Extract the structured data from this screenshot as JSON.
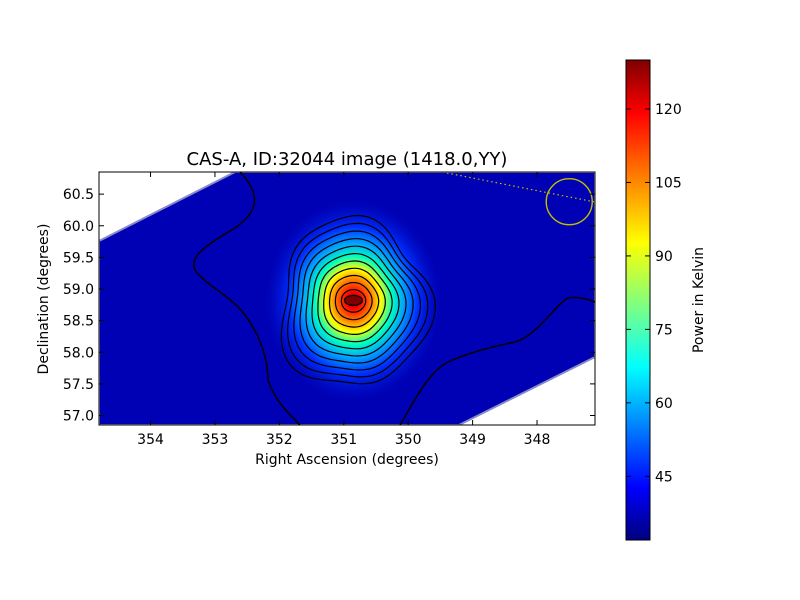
{
  "chart_data": {
    "type": "heatmap",
    "title": "CAS-A, ID:32044 image (1418.0,YY)",
    "xlabel": "Right Ascension (degrees)",
    "ylabel": "Declination (degrees)",
    "xlim": [
      354.8,
      347.1
    ],
    "ylim": [
      56.85,
      60.85
    ],
    "x_ticks": [
      "354",
      "353",
      "352",
      "351",
      "350",
      "349",
      "348"
    ],
    "x_tick_values": [
      354,
      353,
      352,
      351,
      350,
      349,
      348
    ],
    "y_ticks": [
      "57.0",
      "57.5",
      "58.0",
      "58.5",
      "59.0",
      "59.5",
      "60.0",
      "60.5"
    ],
    "y_tick_values": [
      57.0,
      57.5,
      58.0,
      58.5,
      59.0,
      59.5,
      60.0,
      60.5
    ],
    "colorbar": {
      "label": "Power in Kelvin",
      "ticks": [
        "45",
        "60",
        "75",
        "90",
        "105",
        "120"
      ],
      "tick_values": [
        45,
        60,
        75,
        90,
        105,
        120
      ],
      "range": [
        32,
        130
      ],
      "colormap": "jet"
    },
    "source": {
      "ra": 350.85,
      "dec": 58.82,
      "peak": 130,
      "background": 36
    },
    "beam_marker": {
      "ra": 347.5,
      "dec": 60.38,
      "color": "#bfbf00"
    },
    "contours": "black"
  }
}
